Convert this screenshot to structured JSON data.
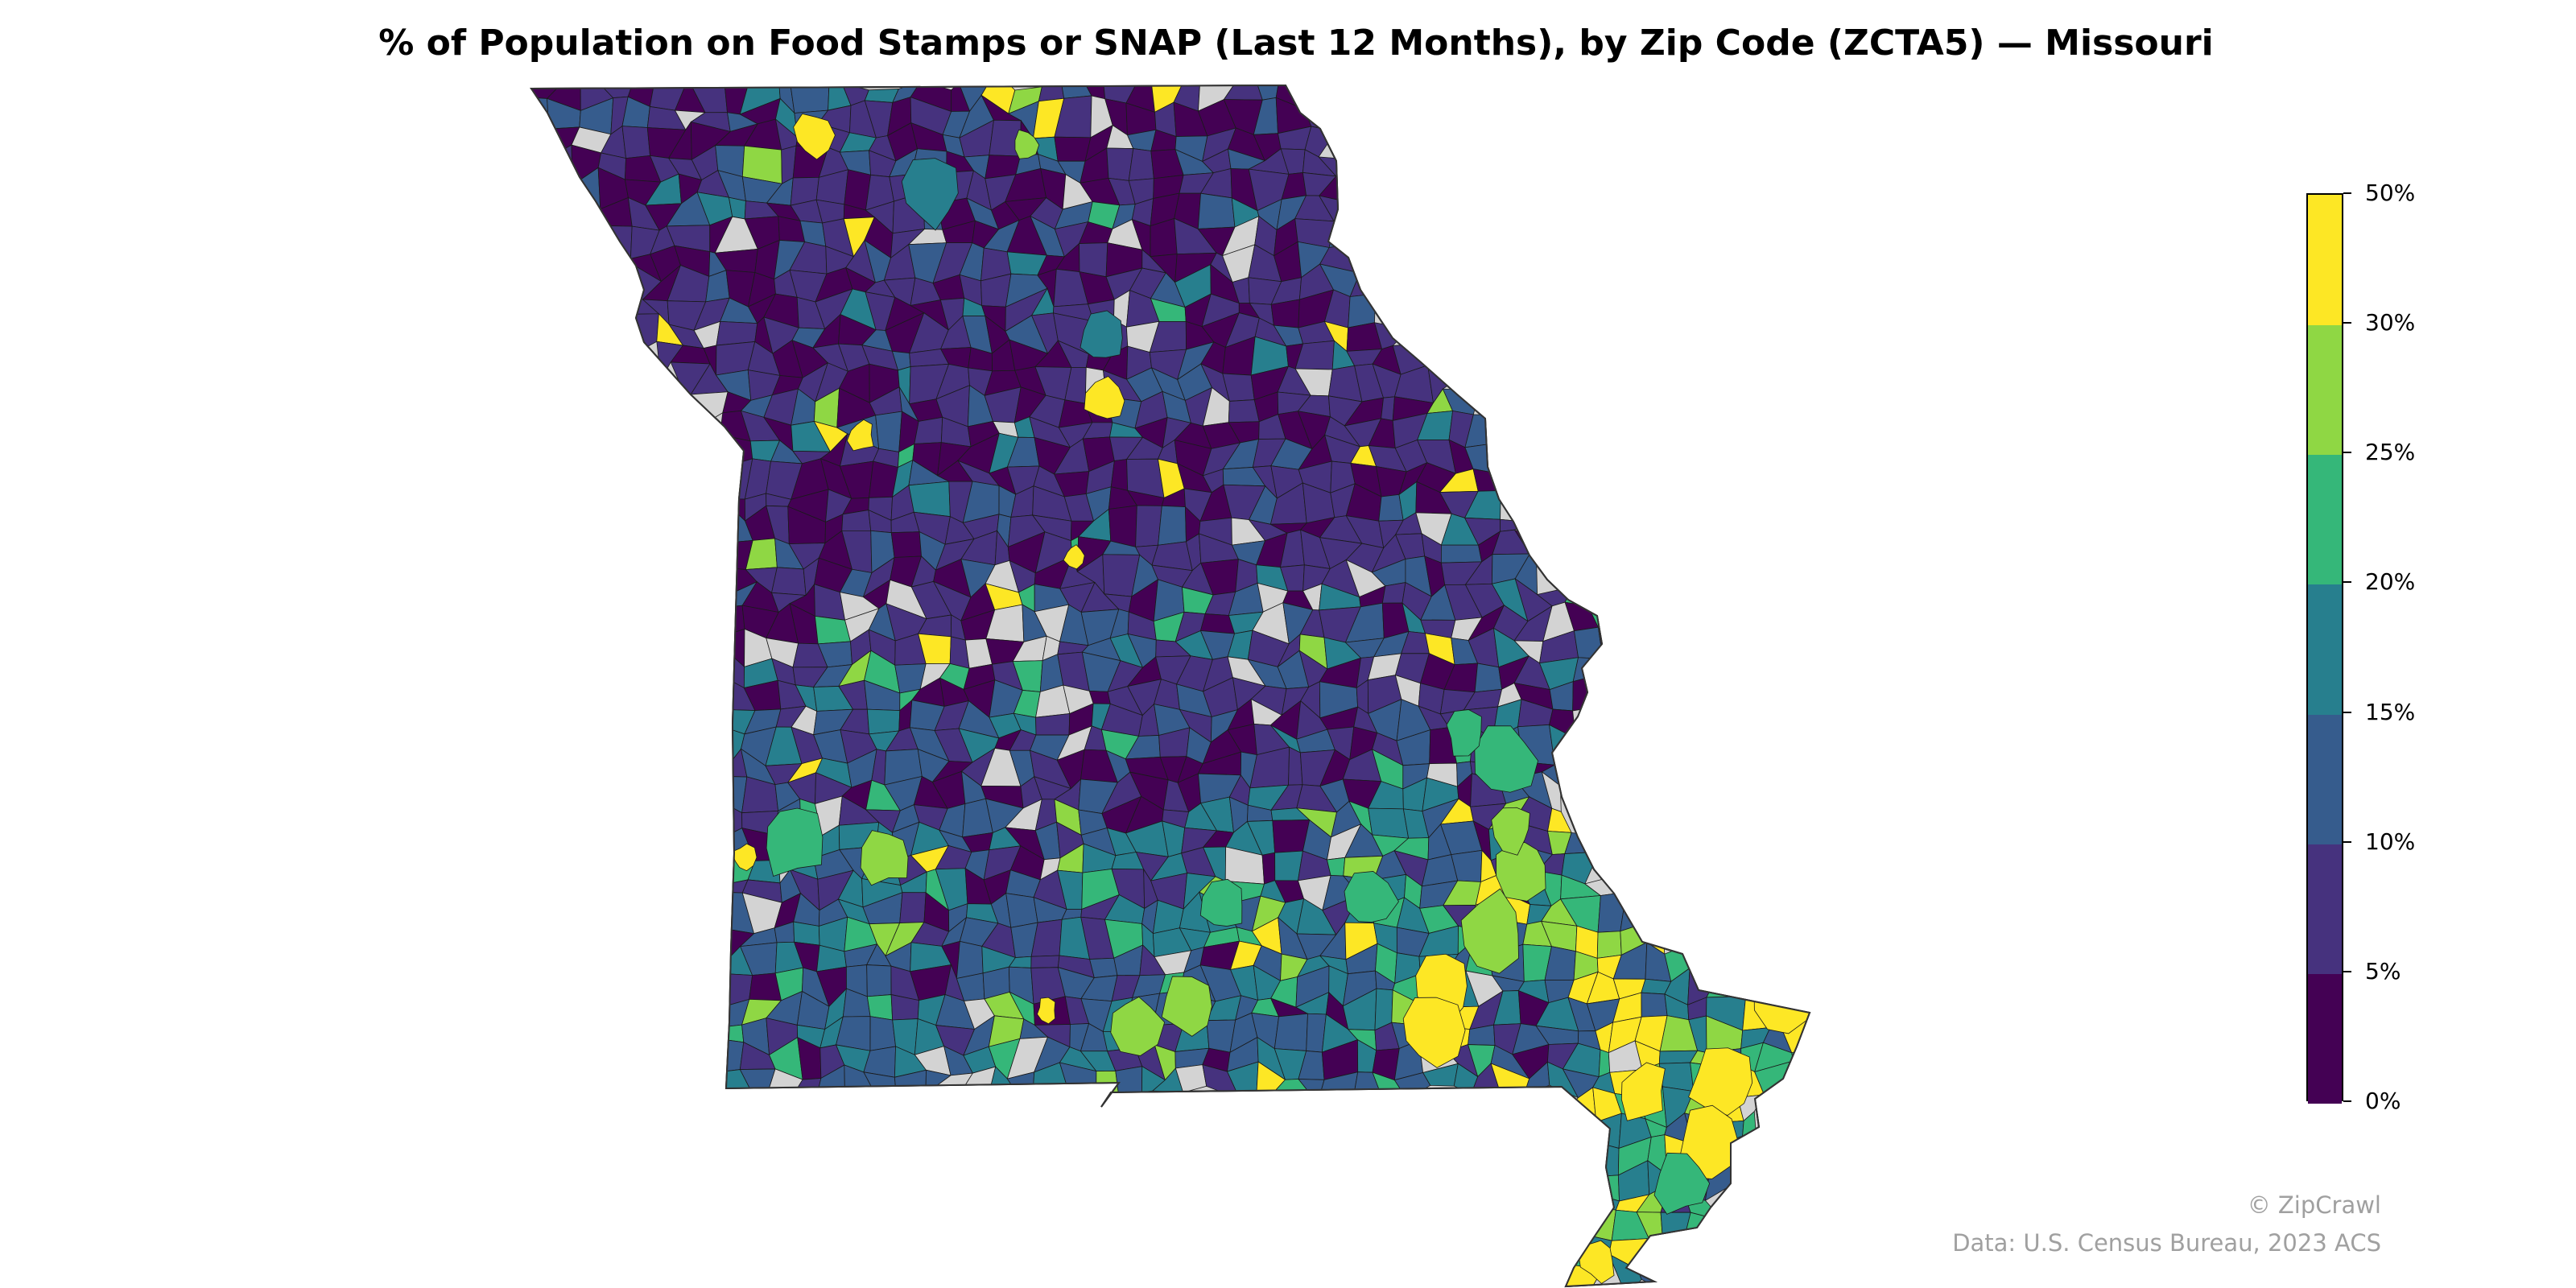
{
  "title": "% of Population on Food Stamps or SNAP (Last 12 Months), by Zip Code (ZCTA5) — Missouri",
  "legend": {
    "ticks": [
      "0%",
      "5%",
      "10%",
      "15%",
      "20%",
      "25%",
      "30%",
      "50%"
    ],
    "bins": [
      {
        "range": "0–5%",
        "color": "#440154"
      },
      {
        "range": "5–10%",
        "color": "#46327e"
      },
      {
        "range": "10–15%",
        "color": "#365c8d"
      },
      {
        "range": "15–20%",
        "color": "#277f8e"
      },
      {
        "range": "20–25%",
        "color": "#35b779"
      },
      {
        "range": "25–30%",
        "color": "#8fd744"
      },
      {
        "range": "30–50%",
        "color": "#fde725"
      }
    ],
    "no_data_color": "#d3d3d3"
  },
  "footer": {
    "copyright": "© ZipCrawl",
    "source": "Data: U.S. Census Bureau, 2023 ACS"
  }
}
